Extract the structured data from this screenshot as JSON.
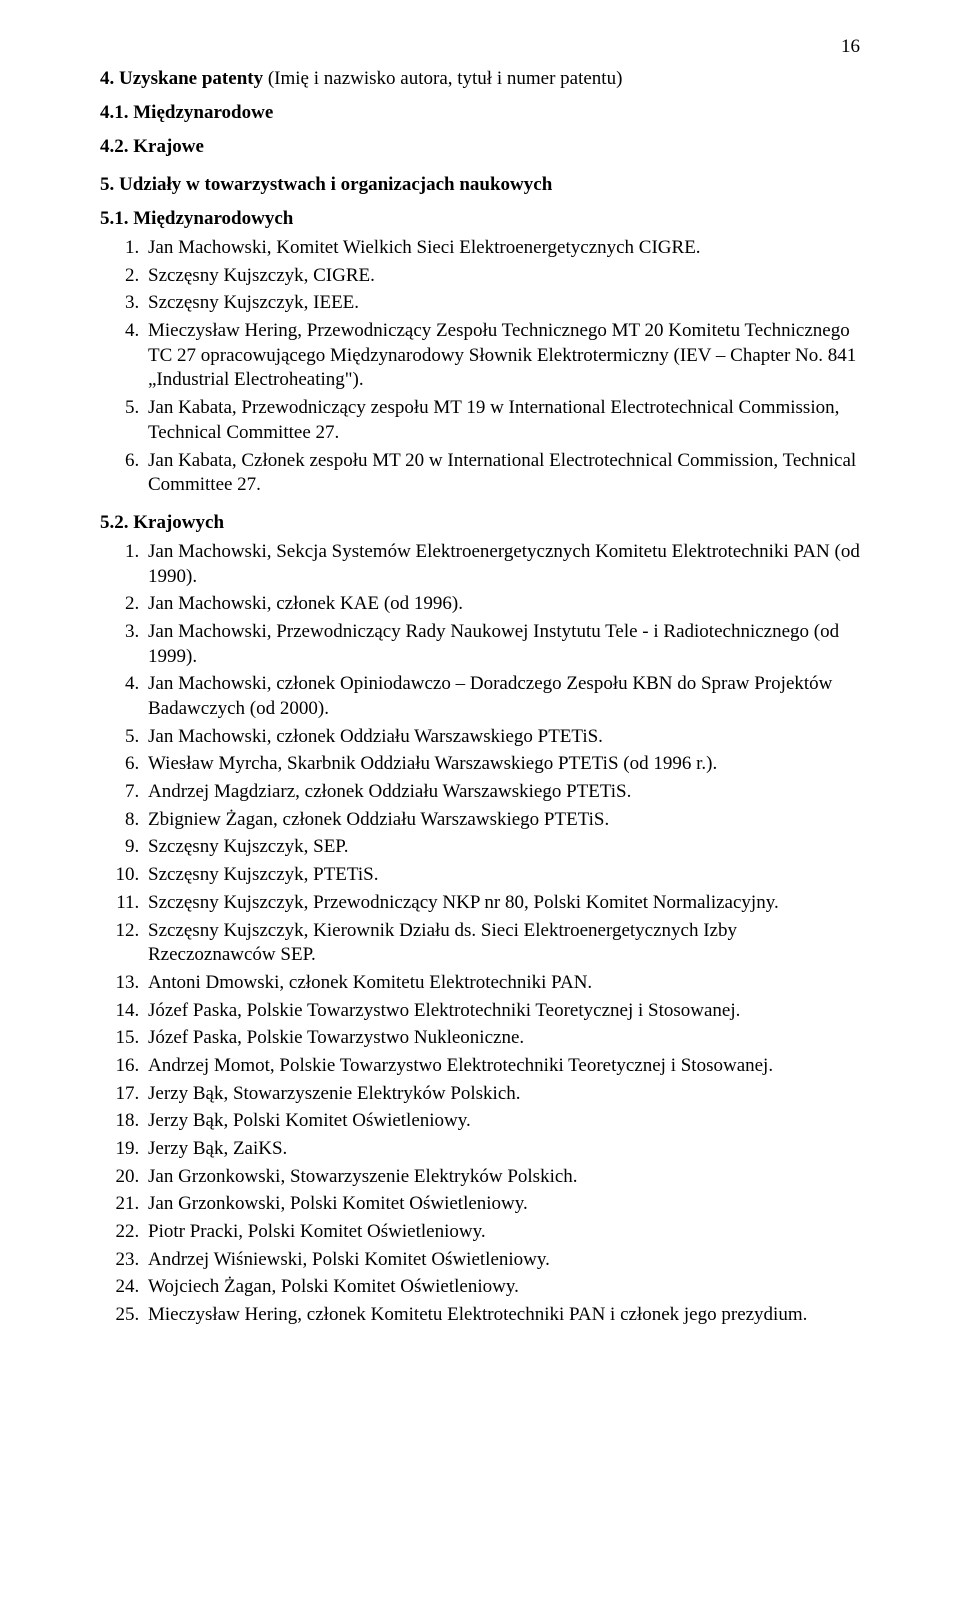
{
  "page_number": "16",
  "section4": {
    "heading": "4. Uzyskane patenty",
    "heading_paren": "(Imię i nazwisko autora, tytuł i numer patentu)",
    "s41": "4.1. Międzynarodowe",
    "s42": "4.2. Krajowe"
  },
  "section5": {
    "heading": "5. Udziały w towarzystwach i organizacjach naukowych",
    "s51": "5.1. Międzynarodowych",
    "s51_items": [
      "Jan Machowski, Komitet Wielkich Sieci Elektroenergetycznych CIGRE.",
      "Szczęsny Kujszczyk, CIGRE.",
      "Szczęsny Kujszczyk, IEEE.",
      " Mieczysław Hering, Przewodniczący Zespołu Technicznego MT 20 Komitetu Technicznego TC 27 opracowującego Międzynarodowy Słownik Elektrotermiczny (IEV – Chapter No. 841 „Industrial Electroheating\").",
      "Jan Kabata, Przewodniczący zespołu MT 19 w International Electrotechnical Commission, Technical Committee 27.",
      "Jan Kabata, Członek zespołu MT 20 w International Electrotechnical Commission, Technical Committee 27."
    ],
    "s52": "5.2. Krajowych",
    "s52_items": [
      "Jan Machowski, Sekcja Systemów Elektroenergetycznych Komitetu Elektrotechniki PAN (od 1990).",
      "Jan Machowski, członek KAE (od 1996).",
      "Jan Machowski, Przewodniczący Rady Naukowej Instytutu Tele - i Radiotechnicznego (od 1999).",
      "Jan Machowski, członek Opiniodawczo – Doradczego Zespołu KBN do Spraw Projektów Badawczych (od 2000).",
      "Jan Machowski, członek Oddziału Warszawskiego PTETiS.",
      "Wiesław Myrcha, Skarbnik Oddziału Warszawskiego PTETiS (od 1996 r.).",
      "Andrzej Magdziarz, członek Oddziału Warszawskiego PTETiS.",
      "Zbigniew Żagan, członek Oddziału Warszawskiego PTETiS.",
      "Szczęsny Kujszczyk, SEP.",
      "Szczęsny Kujszczyk, PTETiS.",
      "Szczęsny Kujszczyk, Przewodniczący NKP nr 80, Polski Komitet Normalizacyjny.",
      "Szczęsny Kujszczyk, Kierownik Działu ds. Sieci Elektroenergetycznych Izby Rzeczoznawców SEP.",
      "Antoni Dmowski, członek Komitetu Elektrotechniki PAN.",
      "Józef Paska, Polskie Towarzystwo Elektrotechniki Teoretycznej i Stosowanej.",
      "Józef Paska, Polskie Towarzystwo Nukleoniczne.",
      "Andrzej Momot, Polskie Towarzystwo Elektrotechniki Teoretycznej i Stosowanej.",
      "Jerzy Bąk, Stowarzyszenie Elektryków Polskich.",
      "Jerzy Bąk, Polski Komitet Oświetleniowy.",
      "Jerzy Bąk, ZaiKS.",
      "Jan Grzonkowski, Stowarzyszenie Elektryków Polskich.",
      "Jan Grzonkowski, Polski Komitet Oświetleniowy.",
      "Piotr Pracki, Polski Komitet Oświetleniowy.",
      "Andrzej Wiśniewski, Polski Komitet Oświetleniowy.",
      "Wojciech Żagan, Polski Komitet Oświetleniowy.",
      "Mieczysław Hering, członek Komitetu Elektrotechniki PAN i członek jego prezydium."
    ]
  }
}
